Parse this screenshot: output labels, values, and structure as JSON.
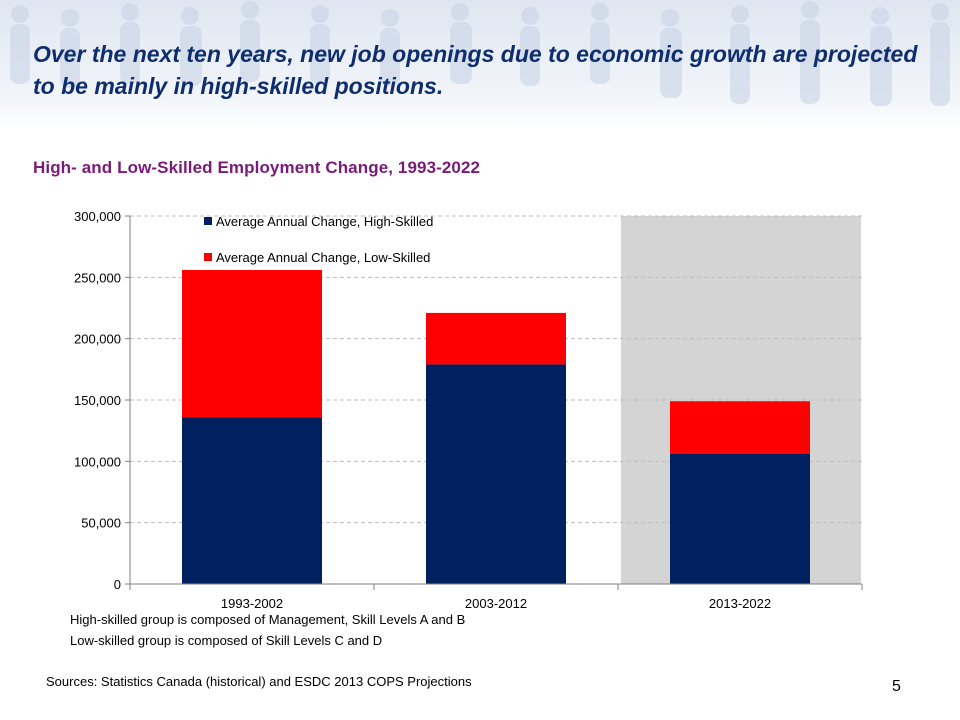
{
  "slide": {
    "title": "Over the next ten years, new job openings due to economic growth are projected to be mainly in high-skilled positions.",
    "page_number": "5",
    "source": "Sources: Statistics Canada (historical) and ESDC 2013 COPS Projections",
    "notes": [
      "High-skilled group is composed of Management, Skill Levels A and B",
      "Low-skilled group is composed of Skill Levels C and D"
    ]
  },
  "colors": {
    "title": "#0e2d6e",
    "chart_title": "#7a1a79",
    "high_skilled": "#002060",
    "low_skilled": "#ff0000",
    "projection_shading": "#d4d4d4"
  },
  "chart_data": {
    "type": "bar",
    "stacked": true,
    "title": "High- and Low-Skilled  Employment Change, 1993-2022",
    "categories": [
      "1993-2002",
      "2003-2012",
      "2013-2022"
    ],
    "series": [
      {
        "name": "Average Annual Change, High-Skilled",
        "color": "#002060",
        "values": [
          136000,
          179000,
          106000
        ]
      },
      {
        "name": "Average Annual Change, Low-Skilled",
        "color": "#ff0000",
        "values": [
          120000,
          42000,
          43000
        ]
      }
    ],
    "ylim": [
      0,
      300000
    ],
    "yticks": [
      0,
      50000,
      100000,
      150000,
      200000,
      250000,
      300000
    ],
    "ytick_labels": [
      "0",
      "50,000",
      "100,000",
      "150,000",
      "200,000",
      "250,000",
      "300,000"
    ],
    "shaded_category": "2013-2022",
    "grid": true,
    "legend_position": "top-left"
  }
}
